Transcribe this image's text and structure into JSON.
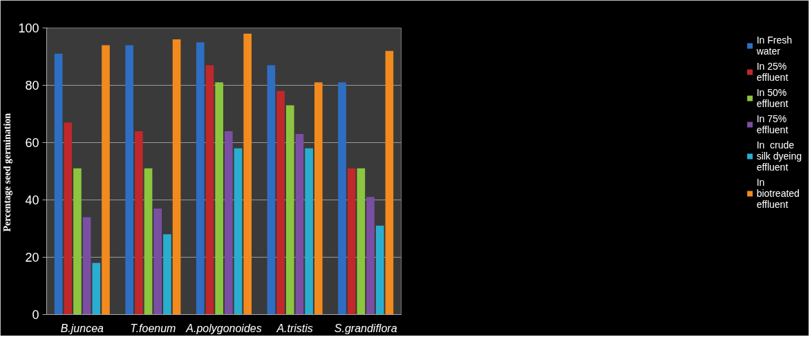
{
  "chart_data": {
    "type": "bar",
    "ylabel": "Percentage  seed germination",
    "categories": [
      "B.juncea",
      "T.foenum",
      "A.polygonoides",
      "A.tristis",
      "S.grandiflora"
    ],
    "series": [
      {
        "name": "In Fresh water",
        "color": "#2e6fc4",
        "values": [
          91,
          94,
          95,
          87,
          81
        ]
      },
      {
        "name": "In 25% effluent",
        "color": "#c0282c",
        "values": [
          67,
          64,
          87,
          78,
          51
        ]
      },
      {
        "name": "In 50% effluent",
        "color": "#8cc63f",
        "values": [
          51,
          51,
          81,
          73,
          51
        ]
      },
      {
        "name": "In 75% effluent",
        "color": "#7a4fa3",
        "values": [
          34,
          37,
          64,
          63,
          41
        ]
      },
      {
        "name": "In  crude silk dyeing effluent",
        "color": "#2aaed0",
        "values": [
          18,
          28,
          58,
          58,
          31
        ]
      },
      {
        "name": "In biotreated effluent",
        "color": "#f28a1e",
        "values": [
          94,
          96,
          98,
          81,
          92
        ]
      }
    ],
    "ylim": [
      0,
      100
    ],
    "yticks": [
      0,
      20,
      40,
      60,
      80,
      100
    ],
    "grid": "y",
    "legend": "right"
  }
}
